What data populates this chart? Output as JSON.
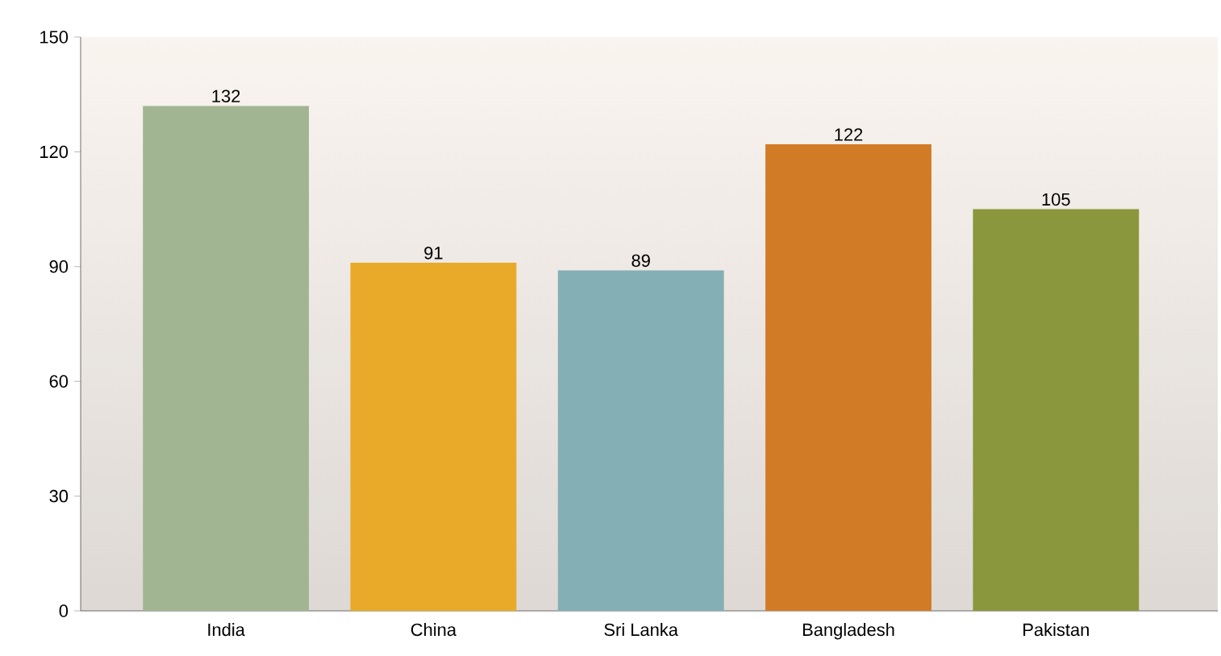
{
  "chart_data": {
    "type": "bar",
    "categories": [
      "India",
      "China",
      "Sri Lanka",
      "Bangladesh",
      "Pakistan"
    ],
    "values": [
      132,
      91,
      89,
      122,
      105
    ],
    "colors": [
      "#a2b592",
      "#e8aa28",
      "#84afb4",
      "#d27b27",
      "#8a973c"
    ],
    "ylim": [
      0,
      150
    ],
    "yticks": [
      0,
      30,
      60,
      90,
      120,
      150
    ],
    "data_labels": true
  }
}
